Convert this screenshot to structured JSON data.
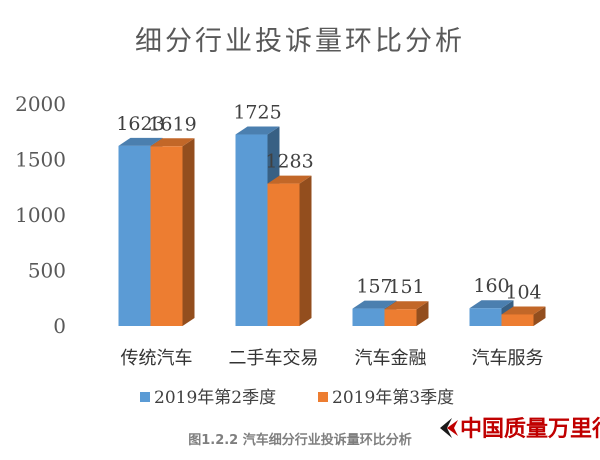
{
  "chart_data": {
    "type": "bar",
    "title": "细分行业投诉量环比分析",
    "categories": [
      "传统汽车",
      "二手车交易",
      "汽车金融",
      "汽车服务"
    ],
    "series": [
      {
        "name": "2019年第2季度",
        "values": [
          1623,
          1725,
          157,
          160
        ],
        "color": "#5b9bd5"
      },
      {
        "name": "2019年第3季度",
        "values": [
          1619,
          1283,
          151,
          104
        ],
        "color": "#ed7d31"
      }
    ],
    "ylim": [
      0,
      2000
    ],
    "yticks": [
      0,
      500,
      1000,
      1500,
      2000
    ],
    "xlabel": "",
    "ylabel": "",
    "grid": false,
    "legend_position": "bottom",
    "bar_style": "3d"
  },
  "caption": "图1.2.2  汽车细分行业投诉量环比分析",
  "logo": {
    "text": "中国质量万里行",
    "color": "#c00000"
  }
}
